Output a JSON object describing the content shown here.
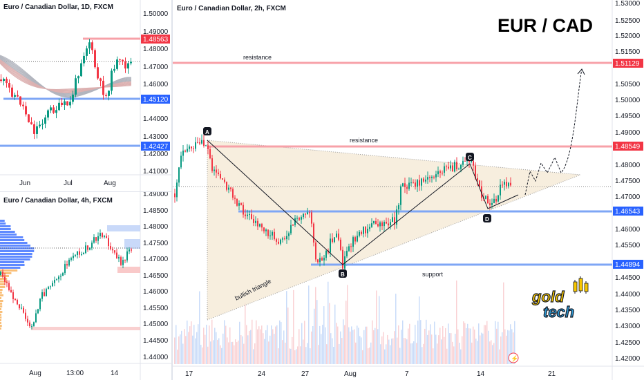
{
  "panel_1d": {
    "title": "Euro / Canadian Dollar, 1D, FXCM",
    "y_ticks": [
      "1.50000",
      "1.49000",
      "1.48000",
      "1.47000",
      "1.46000",
      "1.44000",
      "1.43000",
      "1.42000",
      "1.41000"
    ],
    "x_ticks": [
      "Jun",
      "Jul",
      "Aug"
    ],
    "badges": [
      {
        "label": "1.48563",
        "color": "#f23645"
      },
      {
        "label": "1.45120",
        "color": "#2962ff"
      },
      {
        "label": "1.42427",
        "color": "#2962ff"
      }
    ]
  },
  "panel_4h": {
    "title": "Euro / Canadian Dollar, 4h, FXCM",
    "y_ticks": [
      "1.49000",
      "1.48500",
      "1.48000",
      "1.47500",
      "1.47000",
      "1.46500",
      "1.46000",
      "1.45500",
      "1.45000",
      "1.44500",
      "1.44000"
    ],
    "x_ticks": [
      "Aug",
      "13:00",
      "14"
    ]
  },
  "panel_2h": {
    "title": "Euro / Canadian Dollar, 2h, FXCM",
    "headline": "EUR / CAD",
    "y_ticks": [
      "1.53000",
      "1.52500",
      "1.52000",
      "1.51500",
      "1.50500",
      "1.50000",
      "1.49500",
      "1.49000",
      "1.48000",
      "1.47500",
      "1.47000",
      "1.46000",
      "1.45500",
      "1.44500",
      "1.44000",
      "1.43500",
      "1.43000",
      "1.42500",
      "1.42000"
    ],
    "x_ticks": [
      "17",
      "24",
      "27",
      "Aug",
      "7",
      "14",
      "21"
    ],
    "badges": [
      {
        "label": "1.51129",
        "color": "#f23645"
      },
      {
        "label": "1.48549",
        "color": "#f23645"
      },
      {
        "label": "1.46543",
        "color": "#2962ff"
      },
      {
        "label": "1.44894",
        "color": "#2962ff"
      }
    ],
    "annotations": {
      "resistance_top": "resistance",
      "resistance_mid": "resistance",
      "support": "support",
      "triangle": "bullish triangle",
      "point_a": "A",
      "point_b": "B",
      "point_c": "C",
      "point_d": "D"
    },
    "logo": {
      "line1": "gold",
      "line2": "tech"
    }
  },
  "colors": {
    "up": "#089981",
    "down": "#f23645",
    "resistance": "#f7a1a8",
    "support": "#7ea6f5",
    "triangle_fill": "#f5ead6",
    "path": "#131722"
  },
  "chart_data": [
    {
      "type": "line",
      "title": "Euro / Canadian Dollar, 2h, FXCM",
      "xlabel": "",
      "ylabel": "",
      "x": [
        "17",
        "24",
        "27",
        "Aug",
        "7",
        "14",
        "21"
      ],
      "ylim": [
        1.42,
        1.53
      ],
      "series": [],
      "levels": {
        "resistance_upper": 1.51129,
        "resistance": 1.48549,
        "support_upper": 1.46543,
        "support": 1.44894
      },
      "pattern_points": {
        "A": 1.486,
        "B": 1.449,
        "C": 1.48,
        "D": 1.466
      }
    },
    {
      "type": "line",
      "title": "Euro / Canadian Dollar, 1D, FXCM",
      "x": [
        "Jun",
        "Jul",
        "Aug"
      ],
      "ylim": [
        1.41,
        1.5
      ],
      "levels": {
        "resistance": 1.48563,
        "support_upper": 1.4512,
        "support": 1.42427
      }
    },
    {
      "type": "line",
      "title": "Euro / Canadian Dollar, 4h, FXCM",
      "x": [
        "Aug",
        "13:00",
        "14"
      ],
      "ylim": [
        1.44,
        1.49
      ]
    }
  ]
}
